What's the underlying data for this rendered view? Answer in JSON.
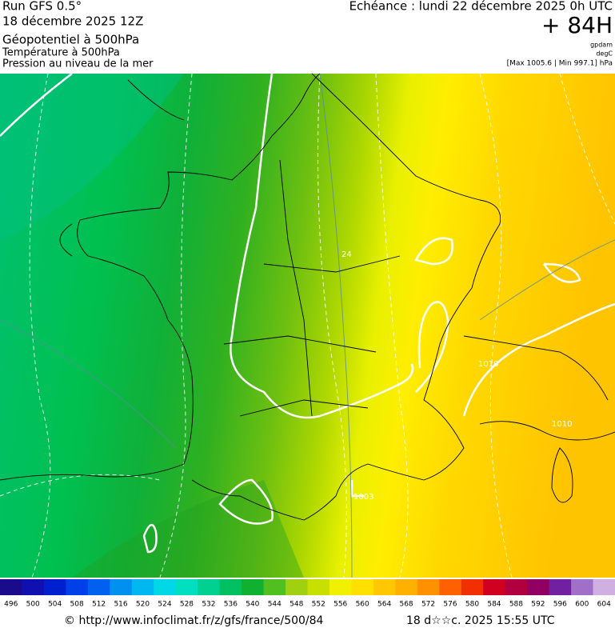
{
  "header": {
    "run": "Run GFS 0.5°",
    "run_date": "18 décembre 2025 12Z",
    "field_1": "Géopotentiel à 500hPa",
    "field_2": "Température à 500hPa",
    "field_3": "Pression au niveau de la mer",
    "valid_time": "Echéance : lundi 22 décembre 2025 0h UTC",
    "lead_time": "+ 84H",
    "unit_1": "gpdam",
    "unit_2": "degC",
    "pressure_range": "[Max 1005.6 | Min 997.1] hPa"
  },
  "map": {
    "labels": [
      "24",
      "1003",
      "1010",
      "1010"
    ]
  },
  "colorbar": {
    "values": [
      496,
      500,
      504,
      508,
      512,
      516,
      520,
      524,
      528,
      532,
      536,
      540,
      544,
      548,
      552,
      556,
      560,
      564,
      568,
      572,
      576,
      580,
      584,
      588,
      592,
      596,
      600,
      604
    ],
    "colors": [
      "#1a0a8c",
      "#1010b0",
      "#0020d0",
      "#0040e8",
      "#0060f0",
      "#0090f0",
      "#00b8f0",
      "#00d8e8",
      "#00e0c0",
      "#00d090",
      "#00c060",
      "#10b030",
      "#50c020",
      "#a0d010",
      "#c8e000",
      "#f0f000",
      "#ffe000",
      "#ffc800",
      "#ffb000",
      "#ff9000",
      "#ff6000",
      "#f03000",
      "#d00020",
      "#b00040",
      "#900060",
      "#7020a0",
      "#a070c8",
      "#d0b0e0"
    ]
  },
  "footer": {
    "source": "© http://www.infoclimat.fr/z/gfs/france/500/84",
    "generated": "18 d☆☆c. 2025 15:55 UTC"
  }
}
